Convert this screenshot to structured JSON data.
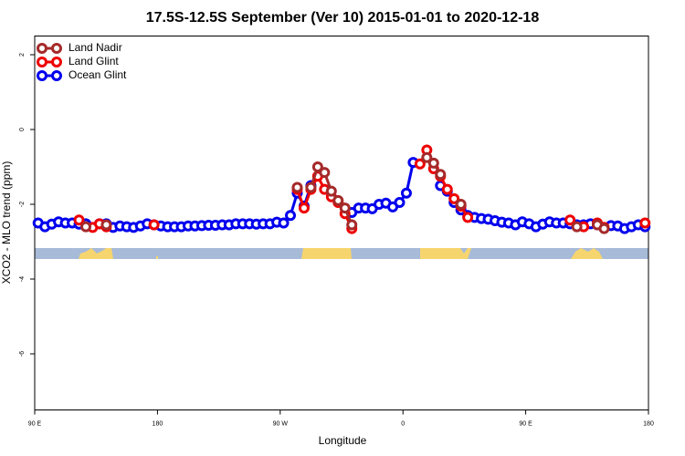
{
  "chart_data": {
    "type": "line",
    "title": "17.5S-12.5S September (Ver 10)   2015-01-01 to 2020-12-18",
    "x_label": "Longitude",
    "y_label": "XCO2 - MLO trend (ppm)",
    "xlim": [
      90,
      540
    ],
    "ylim": [
      -7.5,
      2.5
    ],
    "xticks": [
      {
        "value": 90,
        "label": "90 E"
      },
      180,
      {
        "value": 270,
        "label": "90 W"
      },
      {
        "value": 360,
        "label": "0"
      },
      {
        "value": 450,
        "label": "90 E"
      },
      {
        "value": 540,
        "label": "180"
      }
    ],
    "yticks": [
      2,
      0,
      -2,
      -4,
      -6
    ],
    "grid": false,
    "legend": "top-left",
    "x": [
      92.5,
      97.5,
      102.5,
      107.5,
      112.5,
      117.5,
      122.5,
      127.5,
      132.5,
      137.5,
      142.5,
      147.5,
      152.5,
      157.5,
      162.5,
      167.5,
      172.5,
      177.5,
      182.5,
      187.5,
      192.5,
      197.5,
      202.5,
      207.5,
      212.5,
      217.5,
      222.5,
      227.5,
      232.5,
      237.5,
      242.5,
      247.5,
      252.5,
      257.5,
      262.5,
      267.5,
      272.5,
      277.5,
      282.5,
      287.5,
      292.5,
      297.5,
      302.5,
      307.5,
      312.5,
      317.5,
      322.5,
      327.5,
      332.5,
      337.5,
      342.5,
      347.5,
      352.5,
      357.5,
      362.5,
      367.5,
      372.5,
      377.5,
      382.5,
      387.5,
      392.5,
      397.5,
      402.5,
      407.5,
      412.5,
      417.5,
      422.5,
      427.5,
      432.5,
      437.5,
      442.5,
      447.5,
      452.5,
      457.5,
      462.5,
      467.5,
      472.5,
      477.5,
      482.5,
      487.5,
      492.5,
      497.5,
      502.5,
      507.5,
      512.5,
      517.5,
      522.5,
      527.5,
      532.5,
      537.5
    ],
    "series": [
      {
        "name": "Land Nadir",
        "color": "#a52a2a",
        "values": [
          null,
          null,
          null,
          null,
          null,
          null,
          null,
          -2.6,
          null,
          null,
          -2.55,
          null,
          null,
          null,
          null,
          null,
          null,
          null,
          null,
          null,
          null,
          null,
          null,
          null,
          null,
          null,
          null,
          null,
          null,
          null,
          null,
          null,
          null,
          null,
          null,
          null,
          null,
          null,
          -1.55,
          null,
          -1.55,
          -1.0,
          -1.15,
          -1.65,
          -1.9,
          -2.1,
          -2.55,
          null,
          null,
          null,
          null,
          null,
          null,
          null,
          null,
          null,
          null,
          -0.75,
          -0.9,
          -1.2,
          null,
          null,
          -2.0,
          null,
          null,
          null,
          null,
          null,
          null,
          null,
          null,
          null,
          null,
          null,
          null,
          null,
          null,
          null,
          null,
          -2.6,
          null,
          null,
          -2.55,
          -2.65,
          null,
          null,
          null,
          null,
          null,
          null
        ]
      },
      {
        "name": "Land Glint",
        "color": "#ee0000",
        "values": [
          null,
          null,
          null,
          null,
          null,
          null,
          -2.42,
          null,
          -2.62,
          -2.52,
          -2.6,
          null,
          null,
          null,
          null,
          null,
          null,
          -2.55,
          null,
          null,
          null,
          null,
          null,
          null,
          null,
          null,
          null,
          null,
          null,
          null,
          null,
          null,
          null,
          null,
          null,
          null,
          null,
          null,
          -1.6,
          -2.1,
          -1.6,
          -1.25,
          -1.6,
          -1.8,
          -1.95,
          -2.25,
          -2.65,
          null,
          null,
          null,
          null,
          null,
          null,
          null,
          null,
          null,
          -0.92,
          -0.55,
          -1.05,
          -1.25,
          -1.6,
          -1.85,
          -2.05,
          -2.35,
          null,
          null,
          null,
          null,
          null,
          null,
          null,
          null,
          null,
          null,
          null,
          null,
          null,
          null,
          -2.42,
          null,
          -2.6,
          null,
          -2.5,
          -2.62,
          null,
          null,
          null,
          null,
          null,
          -2.5
        ]
      },
      {
        "name": "Ocean Glint",
        "color": "#0000ee",
        "values": [
          -2.5,
          -2.6,
          -2.53,
          -2.47,
          -2.5,
          -2.5,
          -2.53,
          -2.52,
          null,
          -2.52,
          -2.52,
          -2.62,
          -2.58,
          -2.6,
          -2.62,
          -2.58,
          -2.52,
          -2.55,
          -2.58,
          -2.6,
          -2.6,
          -2.6,
          -2.58,
          -2.58,
          -2.57,
          -2.56,
          -2.56,
          -2.55,
          -2.55,
          -2.52,
          -2.52,
          -2.52,
          -2.53,
          -2.52,
          -2.52,
          -2.48,
          -2.5,
          -2.3,
          -1.7,
          -2.05,
          -1.5,
          null,
          null,
          null,
          null,
          null,
          -2.22,
          -2.1,
          -2.1,
          -2.12,
          -2.0,
          -1.97,
          -2.07,
          -1.95,
          -1.7,
          -0.88,
          null,
          null,
          null,
          -1.5,
          -1.65,
          -1.95,
          -2.15,
          -2.3,
          -2.35,
          -2.38,
          -2.4,
          -2.44,
          -2.48,
          -2.5,
          -2.55,
          -2.47,
          -2.52,
          -2.6,
          -2.53,
          -2.47,
          -2.5,
          -2.5,
          -2.52,
          -2.55,
          -2.55,
          -2.52,
          -2.55,
          -2.62,
          -2.57,
          -2.58,
          -2.65,
          -2.6,
          -2.55,
          -2.6
        ]
      }
    ]
  }
}
